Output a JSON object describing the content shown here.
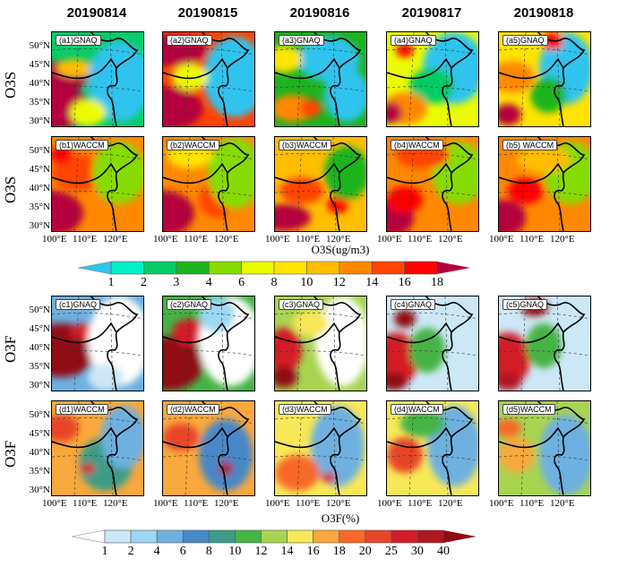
{
  "dates": [
    "20190814",
    "20190815",
    "20190816",
    "20190817",
    "20190818"
  ],
  "row_labels": {
    "a": "O3S",
    "b": "O3S",
    "c": "O3F",
    "d": "O3F"
  },
  "panel_labels": {
    "a": [
      "(a1)GNAQ",
      "(a2)GNAQ",
      "(a3)GNAQ",
      "(a4)GNAQ",
      "(a5)GNAQ"
    ],
    "b": [
      "(b1)WACCM",
      "(b2)WACCM",
      "(b3)WACCM",
      "(b4)WACCM",
      "(b5) WACCM"
    ],
    "c": [
      "(c1)GNAQ",
      "(c2)GNAQ",
      "(c3)GNAQ",
      "(c4)GNAQ",
      "(c5)GNAQ"
    ],
    "d": [
      "(d1)WACCM",
      "(d2)WACCM",
      "(d3)WACCM",
      "(d4)WACCM",
      "(d5)WACCM"
    ]
  },
  "lat_ticks": [
    "50°N",
    "45°N",
    "40°N",
    "35°N",
    "30°N"
  ],
  "lon_ticks": [
    "100°E",
    "110°E",
    "120°E"
  ],
  "colorbar1": {
    "title": "O3S(ug/m3)",
    "ticks": [
      "1",
      "2",
      "3",
      "4",
      "6",
      "8",
      "10",
      "12",
      "14",
      "16",
      "18"
    ],
    "colors": [
      "#2ec4ee",
      "#00f0c8",
      "#06cc66",
      "#1cb41c",
      "#86dc00",
      "#ecfc00",
      "#ffe400",
      "#ffbe00",
      "#ff8800",
      "#ff4400",
      "#ff0000",
      "#b4003c"
    ]
  },
  "colorbar2": {
    "title": "O3F(%)",
    "ticks": [
      "1",
      "2",
      "4",
      "6",
      "8",
      "10",
      "12",
      "14",
      "16",
      "18",
      "20",
      "25",
      "30",
      "40"
    ],
    "colors": [
      "#ffffff",
      "#cce8f6",
      "#9cd8f4",
      "#6eb0e0",
      "#4688c8",
      "#3c9c88",
      "#44b444",
      "#a8d450",
      "#f8e858",
      "#f8a83c",
      "#f86828",
      "#e84428",
      "#d41c28",
      "#b01820",
      "#900c14"
    ]
  }
}
